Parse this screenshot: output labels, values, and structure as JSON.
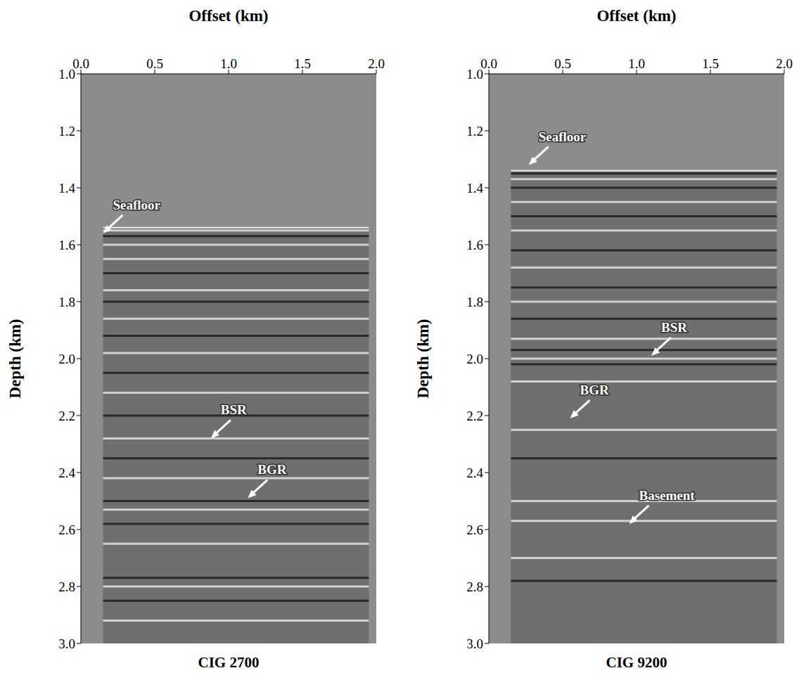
{
  "chart_data": [
    {
      "type": "image",
      "title": "CIG 2700",
      "x_label": "Offset (km)",
      "y_label": "Depth (km)",
      "xlim": [
        0,
        2
      ],
      "xticks": [
        {
          "value": 0,
          "label": "0.0"
        },
        0.5,
        {
          "value": 1,
          "label": "1.0"
        },
        1.5,
        {
          "value": 2,
          "label": "2.0"
        }
      ],
      "ylim": [
        3,
        1
      ],
      "yticks": [
        {
          "value": 1,
          "label": "1.0"
        },
        1.2,
        1.4,
        1.6,
        1.8,
        {
          "value": 2,
          "label": "2.0"
        },
        2.2,
        2.4,
        2.6,
        2.8,
        {
          "value": 3,
          "label": "3.0"
        }
      ],
      "seafloor_depth": 1.54,
      "offset_range": [
        0.15,
        1.95
      ],
      "reflectors": {
        "depths": [
          1.55,
          1.57,
          1.6,
          1.65,
          1.7,
          1.76,
          1.8,
          1.86,
          1.92,
          1.98,
          2.05,
          2.12,
          2.2,
          2.28,
          2.35,
          2.42,
          2.5,
          2.53,
          2.58,
          2.65,
          2.77,
          2.8,
          2.85,
          2.92
        ],
        "colors": [
          "#f2f2f2",
          "#111111",
          "#f2f2f2",
          "#f2f2f2",
          "#111111",
          "#f2f2f2",
          "#111111",
          "#f2f2f2",
          "#111111",
          "#f2f2f2",
          "#111111",
          "#f2f2f2",
          "#111111",
          "#f2f2f2",
          "#111111",
          "#f2f2f2",
          "#111111",
          "#f2f2f2",
          "#111111",
          "#f2f2f2",
          "#111111",
          "#f2f2f2",
          "#111111",
          "#f2f2f2"
        ]
      },
      "annotations": [
        {
          "text": "Seafloor",
          "x": 0.15,
          "y": 1.56
        },
        {
          "text": "BSR",
          "x": 0.88,
          "y": 2.28
        },
        {
          "text": "BGR",
          "x": 1.13,
          "y": 2.49
        }
      ]
    },
    {
      "type": "image",
      "title": "CIG 9200",
      "x_label": "Offset (km)",
      "y_label": "Depth (km)",
      "xlim": [
        0,
        2
      ],
      "xticks": [
        {
          "value": 0,
          "label": "0.0"
        },
        0.5,
        {
          "value": 1,
          "label": "1.0"
        },
        1.5,
        {
          "value": 2,
          "label": "2.0"
        }
      ],
      "ylim": [
        3,
        1
      ],
      "yticks": [
        {
          "value": 1,
          "label": "1.0"
        },
        1.2,
        1.4,
        1.6,
        1.8,
        {
          "value": 2,
          "label": "2.0"
        },
        2.2,
        2.4,
        2.6,
        2.8,
        {
          "value": 3,
          "label": "3.0"
        }
      ],
      "seafloor_depth": 1.34,
      "offset_range": [
        0.15,
        1.95
      ],
      "reflectors": {
        "depths": [
          1.35,
          1.37,
          1.4,
          1.45,
          1.5,
          1.55,
          1.62,
          1.68,
          1.75,
          1.8,
          1.86,
          1.93,
          1.97,
          2.0,
          2.02,
          2.08,
          2.25,
          2.35,
          2.5,
          2.57,
          2.7,
          2.78
        ],
        "colors": [
          "#111111",
          "#f2f2f2",
          "#111111",
          "#f2f2f2",
          "#111111",
          "#f2f2f2",
          "#111111",
          "#f2f2f2",
          "#111111",
          "#f2f2f2",
          "#111111",
          "#f2f2f2",
          "#111111",
          "#f2f2f2",
          "#111111",
          "#f2f2f2",
          "#f2f2f2",
          "#111111",
          "#f2f2f2",
          "#f2f2f2",
          "#f2f2f2",
          "#111111"
        ]
      },
      "annotations": [
        {
          "text": "Seafloor",
          "x": 0.27,
          "y": 1.32
        },
        {
          "text": "BSR",
          "x": 1.1,
          "y": 1.99
        },
        {
          "text": "BGR",
          "x": 0.55,
          "y": 2.21
        },
        {
          "text": "Basement",
          "x": 0.95,
          "y": 2.58
        }
      ]
    }
  ]
}
